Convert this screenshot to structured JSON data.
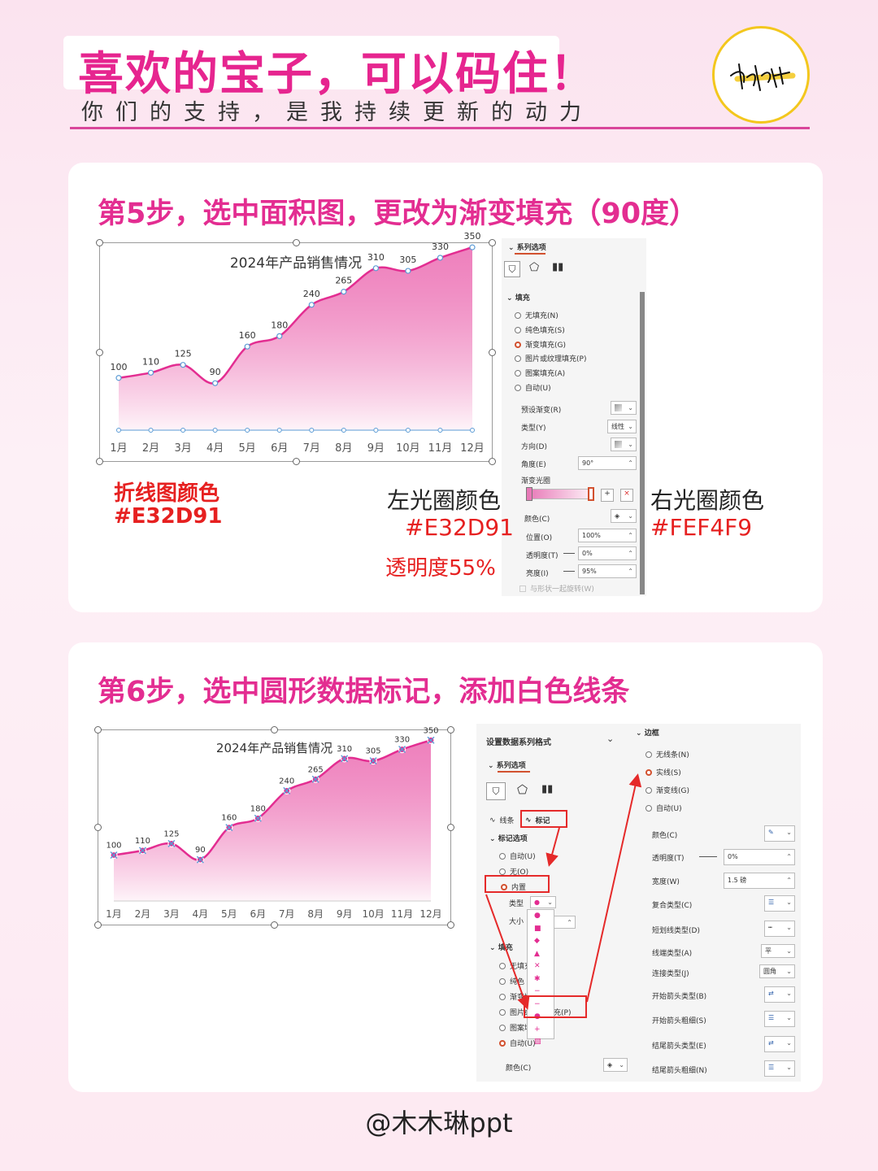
{
  "header": {
    "title": "喜欢的宝子，可以码住！",
    "subtitle": "你们的支持，是我持续更新的动力"
  },
  "step5": {
    "title": "第5步，选中面积图，更改为渐变填充（90度）",
    "line_color_label": "折线图颜色",
    "line_color_hex": "#E32D91",
    "left_stop_label": "左光圈颜色",
    "left_stop_hex": "#E32D91",
    "left_stop_alpha": "透明度55%",
    "right_stop_label": "右光圈颜色",
    "right_stop_hex": "#FEF4F9"
  },
  "step6": {
    "title": "第6步，选中圆形数据标记，添加白色线条"
  },
  "chart_data": [
    {
      "type": "area",
      "title": "2024年产品销售情况",
      "categories": [
        "1月",
        "2月",
        "3月",
        "4月",
        "5月",
        "6月",
        "7月",
        "8月",
        "9月",
        "10月",
        "11月",
        "12月"
      ],
      "values": [
        100,
        110,
        125,
        90,
        160,
        180,
        240,
        265,
        310,
        305,
        330,
        350
      ],
      "ylim": [
        0,
        400
      ],
      "grid": false,
      "line_color": "#E32D91",
      "gradient_top": "#E32D91",
      "gradient_bottom": "#FEF4F9"
    },
    {
      "type": "area",
      "title": "2024年产品销售情况",
      "categories": [
        "1月",
        "2月",
        "3月",
        "4月",
        "5月",
        "6月",
        "7月",
        "8月",
        "9月",
        "10月",
        "11月",
        "12月"
      ],
      "values": [
        100,
        110,
        125,
        90,
        160,
        180,
        240,
        265,
        310,
        305,
        330,
        350
      ],
      "ylim": [
        0,
        400
      ],
      "grid": false,
      "line_color": "#E32D91"
    }
  ],
  "panel1": {
    "tab": "系列选项",
    "fill_section": "填充",
    "fill_options": [
      "无填充(N)",
      "纯色填充(S)",
      "渐变填充(G)",
      "图片或纹理填充(P)",
      "图案填充(A)",
      "自动(U)"
    ],
    "preset_label": "预设渐变(R)",
    "type_label": "类型(Y)",
    "type_value": "线性",
    "direction_label": "方向(D)",
    "angle_label": "角度(E)",
    "angle_value": "90°",
    "stops_label": "渐变光圈",
    "color_label": "颜色(C)",
    "position_label": "位置(O)",
    "position_value": "100%",
    "transparency_label": "透明度(T)",
    "transparency_value": "0%",
    "brightness_label": "亮度(I)",
    "brightness_value": "95%",
    "rotate_label": "与形状一起旋转(W)"
  },
  "panel2": {
    "header": "设置数据系列格式",
    "tab": "系列选项",
    "tab_line": "线条",
    "tab_marker": "标记",
    "marker_section": "标记选项",
    "marker_options": [
      "自动(U)",
      "无(O)",
      "内置"
    ],
    "type_label": "类型",
    "size_label": "大小",
    "fill_section": "填充",
    "fill_options": [
      "无填充",
      "纯色",
      "渐变填",
      "图片或纹理填充(P)",
      "图案填",
      "自动(U)"
    ],
    "color_label": "颜色(C)"
  },
  "panel3": {
    "section": "边框",
    "options": [
      "无线条(N)",
      "实线(S)",
      "渐变线(G)",
      "自动(U)"
    ],
    "rows": [
      {
        "label": "颜色(C)",
        "value": ""
      },
      {
        "label": "透明度(T)",
        "value": "0%"
      },
      {
        "label": "宽度(W)",
        "value": "1.5 磅"
      },
      {
        "label": "复合类型(C)",
        "value": ""
      },
      {
        "label": "短划线类型(D)",
        "value": ""
      },
      {
        "label": "线端类型(A)",
        "value": "平"
      },
      {
        "label": "连接类型(J)",
        "value": "圆角"
      },
      {
        "label": "开始箭头类型(B)",
        "value": ""
      },
      {
        "label": "开始箭头粗细(S)",
        "value": ""
      },
      {
        "label": "结尾箭头类型(E)",
        "value": ""
      },
      {
        "label": "结尾箭头粗细(N)",
        "value": ""
      }
    ]
  },
  "footer": "@木木琳ppt"
}
